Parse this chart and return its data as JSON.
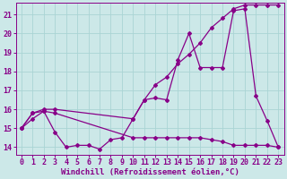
{
  "xlabel": "Windchill (Refroidissement éolien,°C)",
  "background_color": "#cce8e8",
  "line_color": "#880088",
  "grid_color": "#aad4d4",
  "xlim": [
    -0.5,
    23.5
  ],
  "ylim": [
    13.6,
    21.6
  ],
  "yticks": [
    14,
    15,
    16,
    17,
    18,
    19,
    20,
    21
  ],
  "xticks": [
    0,
    1,
    2,
    3,
    4,
    5,
    6,
    7,
    8,
    9,
    10,
    11,
    12,
    13,
    14,
    15,
    16,
    17,
    18,
    19,
    20,
    21,
    22,
    23
  ],
  "line1_x": [
    0,
    1,
    2,
    3,
    4,
    5,
    6,
    7,
    8,
    9,
    10,
    11,
    12,
    13,
    14,
    15,
    16,
    17,
    18,
    19,
    20,
    21,
    22,
    23
  ],
  "line1_y": [
    15.0,
    15.8,
    15.9,
    14.8,
    14.0,
    14.1,
    14.1,
    13.9,
    14.4,
    14.5,
    15.5,
    16.5,
    16.6,
    16.5,
    18.6,
    20.0,
    18.2,
    18.2,
    18.2,
    21.2,
    21.3,
    16.7,
    15.4,
    14.0
  ],
  "line2_x": [
    0,
    1,
    2,
    3,
    10,
    11,
    12,
    13,
    14,
    15,
    16,
    17,
    18,
    19,
    20,
    21,
    22,
    23
  ],
  "line2_y": [
    15.0,
    15.8,
    16.0,
    16.0,
    15.5,
    16.5,
    17.3,
    17.7,
    18.4,
    18.9,
    19.5,
    20.3,
    20.8,
    21.3,
    21.5,
    21.5,
    21.5,
    21.5
  ],
  "line3_x": [
    0,
    1,
    2,
    3,
    10,
    11,
    12,
    13,
    14,
    15,
    16,
    17,
    18,
    19,
    20,
    21,
    22,
    23
  ],
  "line3_y": [
    15.0,
    15.5,
    15.9,
    15.8,
    14.5,
    14.5,
    14.5,
    14.5,
    14.5,
    14.5,
    14.5,
    14.4,
    14.3,
    14.1,
    14.1,
    14.1,
    14.1,
    14.0
  ],
  "marker": "D",
  "markersize": 2.0,
  "linewidth": 0.9,
  "xlabel_fontsize": 6.5,
  "tick_fontsize": 6.0
}
